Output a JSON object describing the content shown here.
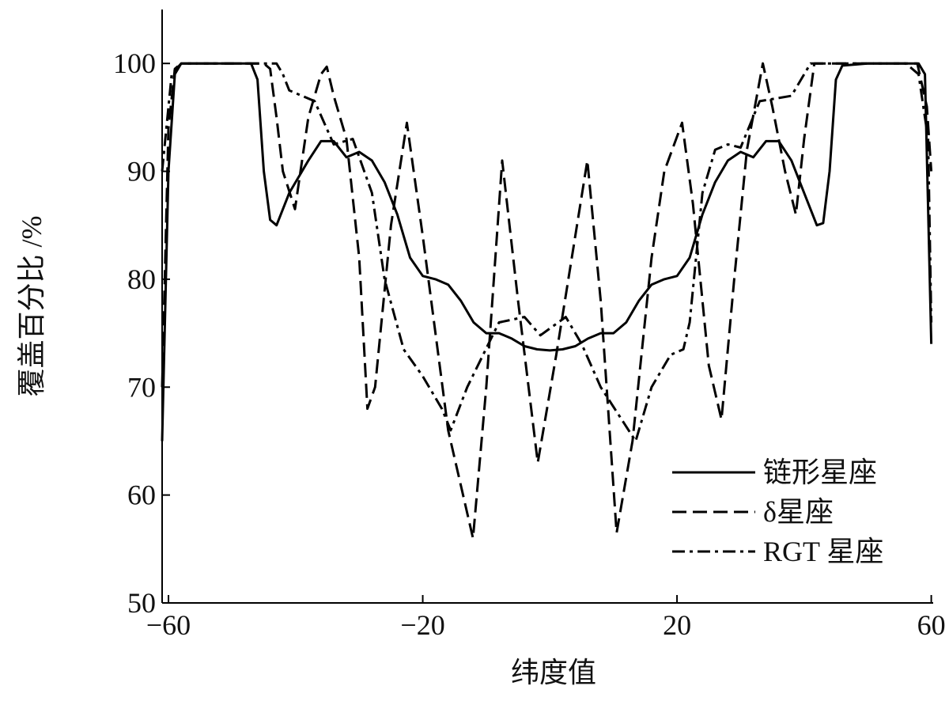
{
  "chart_data": {
    "type": "line",
    "x_label": "纬度值",
    "y_label": "覆盖百分比 /%",
    "xlim": [
      -61,
      60.3
    ],
    "ylim": [
      50,
      105
    ],
    "xticks": [
      {
        "value": -60,
        "label": "−60"
      },
      {
        "value": -20,
        "label": "−20"
      },
      20,
      60
    ],
    "yticks": [
      50,
      60,
      70,
      80,
      90,
      100
    ],
    "legend": "lower right",
    "series": [
      {
        "name": "链形星座",
        "color": "#000000",
        "dash": "solid",
        "x": [
          -61,
          -60,
          -59,
          -58,
          -47,
          -46,
          -45,
          -44,
          -43,
          -41,
          -38,
          -36,
          -34,
          -32,
          -30,
          -28,
          -26,
          -24,
          -22,
          -20,
          -18,
          -16,
          -14,
          -12,
          -10,
          -8,
          -6,
          -4,
          -2,
          0,
          2,
          4,
          6,
          8,
          10,
          12,
          14,
          16,
          18,
          20,
          22,
          24,
          26,
          28,
          30,
          32,
          34,
          36,
          38,
          40,
          42,
          43,
          44,
          45,
          46,
          50,
          58,
          59,
          60
        ],
        "values": [
          65,
          90,
          99,
          100,
          100,
          98.5,
          90,
          85.5,
          85,
          88,
          91,
          92.8,
          92.8,
          91.3,
          91.8,
          91,
          89,
          86,
          82,
          80.3,
          80,
          79.5,
          78,
          76,
          75,
          75,
          74.5,
          73.8,
          73.5,
          73.4,
          73.5,
          73.8,
          74.5,
          75,
          75,
          76,
          78,
          79.5,
          80,
          80.3,
          82,
          86,
          89,
          91,
          91.8,
          91.3,
          92.8,
          92.8,
          91,
          88,
          85,
          85.2,
          90,
          98.5,
          99.8,
          100,
          100,
          99,
          74
        ]
      },
      {
        "name": "δ星座",
        "color": "#000000",
        "dash": "dashed",
        "x": [
          -61,
          -60,
          -59,
          -58,
          -45,
          -44,
          -43,
          -42,
          -40.1,
          -38,
          -36,
          -35.1,
          -34,
          -32,
          -30,
          -28.7,
          -27.5,
          -25,
          -22.5,
          -20,
          -16,
          -12.1,
          -10,
          -7.5,
          -5,
          -1.9,
          1,
          5.9,
          8,
          10.5,
          13,
          16,
          18,
          20.8,
          22.5,
          25,
          27,
          29,
          31,
          33.5,
          35,
          37,
          38.7,
          40,
          41.6,
          57.8,
          59.3,
          60
        ],
        "values": [
          70,
          94,
          99.5,
          100,
          100,
          99.5,
          95,
          90,
          86.5,
          95,
          99,
          99.7,
          97,
          93,
          82,
          68,
          70,
          85,
          94.5,
          84,
          66,
          56,
          70,
          91,
          78,
          63,
          73,
          91,
          78,
          56.5,
          65,
          82,
          90,
          94.5,
          87,
          72,
          67,
          80,
          92,
          100,
          96,
          90,
          86,
          93,
          100,
          100,
          96,
          90
        ]
      },
      {
        "name": "RGT 星座",
        "color": "#000000",
        "dash": "dashdot",
        "x": [
          -61,
          -59.5,
          -58,
          -43,
          -42,
          -41,
          -37,
          -34,
          -31,
          -28,
          -26,
          -23,
          -20,
          -17,
          -15.6,
          -13,
          -8,
          -4,
          -1.5,
          2.5,
          5,
          8,
          13.5,
          16,
          19,
          21,
          22,
          24,
          26,
          28,
          30,
          33,
          38,
          41,
          56,
          58,
          59.5,
          60
        ],
        "values": [
          90,
          99,
          100,
          100,
          99,
          97.5,
          96.5,
          92.5,
          93,
          88,
          80,
          73.5,
          71,
          68,
          66,
          70,
          76,
          76.5,
          74.8,
          76.5,
          74,
          70,
          65,
          70,
          73,
          73.5,
          76,
          88,
          92,
          92.5,
          92.2,
          96.5,
          97,
          100,
          100,
          99,
          93,
          76
        ]
      }
    ]
  }
}
